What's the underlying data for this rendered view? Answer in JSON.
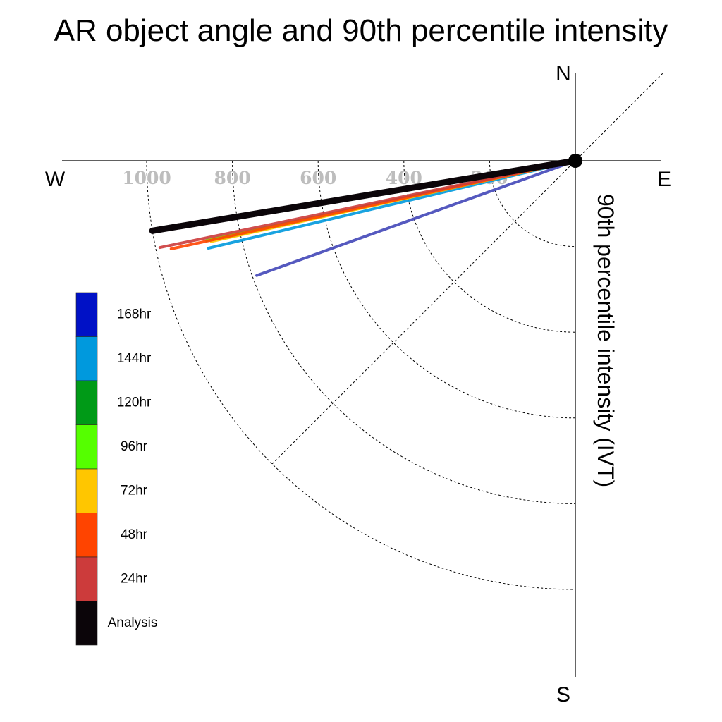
{
  "chart_data": {
    "type": "polar-vector",
    "title": "AR object angle and 90th percentile intensity",
    "axis_title": "90th percentile intensity (IVT)",
    "compass": {
      "north": "N",
      "south": "S",
      "east": "E",
      "west": "W"
    },
    "ring_values": [
      200,
      400,
      600,
      800,
      1000
    ],
    "ring_labels": [
      "200",
      "400",
      "600",
      "800",
      "1000"
    ],
    "diagonal_guide": "NE-SW dotted",
    "grid_style": "dotted",
    "angle_convention": "degrees below west (W = 0, clockwise toward S)",
    "series": [
      {
        "name": "Analysis",
        "color": "#0b0509",
        "magnitude": 1000,
        "angle_deg_below_west": 9.4
      },
      {
        "name": "24hr",
        "color": "#cc3b3b",
        "magnitude": 990,
        "angle_deg_below_west": 11.8
      },
      {
        "name": "48hr",
        "color": "#ff4400",
        "magnitude": 965,
        "angle_deg_below_west": 12.3
      },
      {
        "name": "72hr",
        "color": "#ffc600",
        "magnitude": 870,
        "angle_deg_below_west": 12.5
      },
      {
        "name": "96hr",
        "color": "#55ff00",
        "magnitude": 880,
        "angle_deg_below_west": 12.2
      },
      {
        "name": "120hr",
        "color": "#009a17",
        "magnitude": 840,
        "angle_deg_below_west": 12.4
      },
      {
        "name": "144hr",
        "color": "#0099dd",
        "magnitude": 880,
        "angle_deg_below_west": 13.4
      },
      {
        "name": "168hr",
        "color": "#4347b8",
        "magnitude": 790,
        "angle_deg_below_west": 19.8
      }
    ],
    "legend": {
      "placement": "left",
      "entries": [
        {
          "label": "168hr",
          "color": "#0011c6"
        },
        {
          "label": "144hr",
          "color": "#0099dd"
        },
        {
          "label": "120hr",
          "color": "#009a17"
        },
        {
          "label": "96hr",
          "color": "#55ff00"
        },
        {
          "label": "72hr",
          "color": "#ffc600"
        },
        {
          "label": "48hr",
          "color": "#ff4400"
        },
        {
          "label": "24hr",
          "color": "#cc3b3b"
        },
        {
          "label": "Analysis",
          "color": "#0b0509"
        }
      ]
    }
  }
}
